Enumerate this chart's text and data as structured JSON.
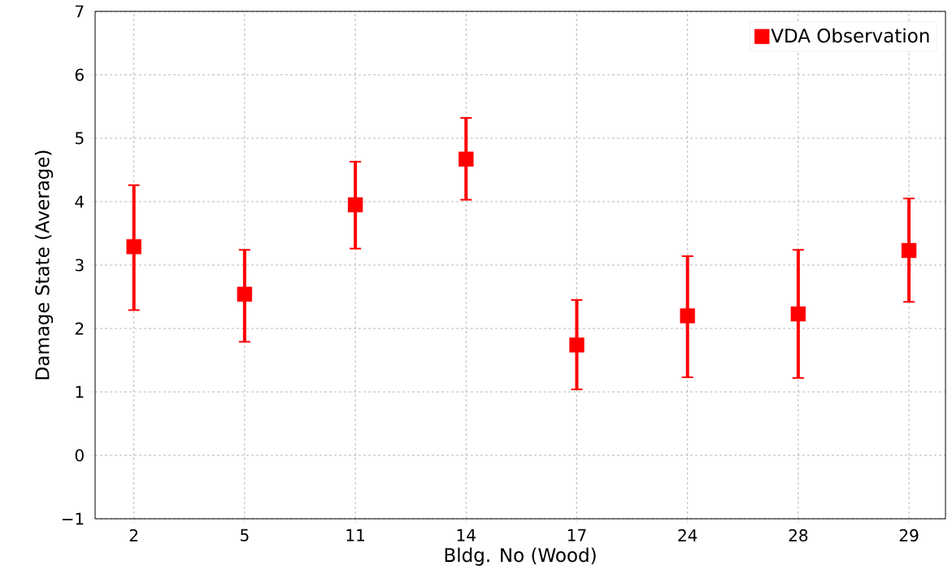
{
  "chart_data": {
    "type": "scatter",
    "xlabel": "Bldg. No (Wood)",
    "ylabel": "Damage State (Average)",
    "categories": [
      "2",
      "5",
      "11",
      "14",
      "17",
      "24",
      "28",
      "29"
    ],
    "series": [
      {
        "name": "VDA Observation",
        "color": "#ff0000",
        "values": [
          3.29,
          2.54,
          3.95,
          4.67,
          1.74,
          2.2,
          2.23,
          3.23
        ],
        "errors": [
          [
            2.29,
            4.26
          ],
          [
            1.79,
            3.24
          ],
          [
            3.26,
            4.63
          ],
          [
            4.03,
            5.32
          ],
          [
            1.04,
            2.45
          ],
          [
            1.23,
            3.14
          ],
          [
            1.22,
            3.24
          ],
          [
            2.42,
            4.05
          ]
        ]
      }
    ],
    "ylim": [
      -1,
      7
    ],
    "yticks": [
      {
        "value": -1,
        "label": "−1"
      },
      0,
      1,
      2,
      3,
      4,
      5,
      6,
      7
    ],
    "grid": true,
    "legend": "top right",
    "marker": "square"
  }
}
